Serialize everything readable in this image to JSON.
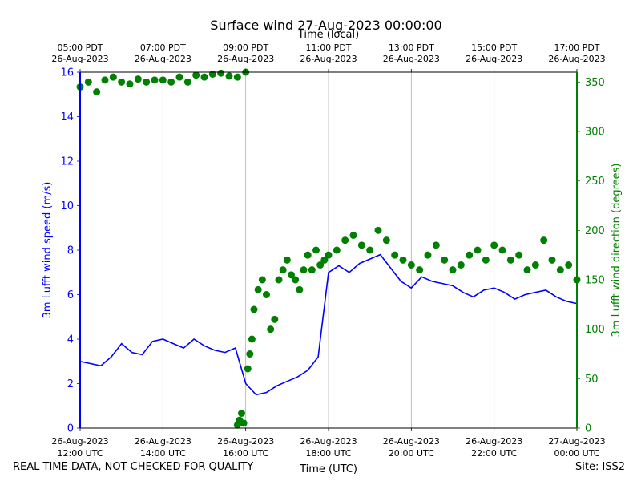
{
  "chart_data": {
    "type": "line",
    "title": "Surface wind 27-Aug-2023 00:00:00",
    "top_axis_label": "Time (local)",
    "xlabel": "Time (UTC)",
    "ylabel": "3m Lufft wind speed (m/s)",
    "ylabel_right": "3m Lufft wind direction (degrees)",
    "x_range_utc": [
      "2023-08-26 12:00",
      "2023-08-27 00:00"
    ],
    "ylim": [
      0,
      16
    ],
    "ylim_right": [
      0,
      360
    ],
    "grid": "vertical",
    "colors": {
      "speed": "#0000ff",
      "direction": "#008000"
    },
    "x_ticks_utc": [
      {
        "date": "26-Aug-2023",
        "time": "12:00 UTC"
      },
      {
        "date": "26-Aug-2023",
        "time": "14:00 UTC"
      },
      {
        "date": "26-Aug-2023",
        "time": "16:00 UTC"
      },
      {
        "date": "26-Aug-2023",
        "time": "18:00 UTC"
      },
      {
        "date": "26-Aug-2023",
        "time": "20:00 UTC"
      },
      {
        "date": "26-Aug-2023",
        "time": "22:00 UTC"
      },
      {
        "date": "27-Aug-2023",
        "time": "00:00 UTC"
      }
    ],
    "x_ticks_local": [
      {
        "time": "05:00 PDT",
        "date": "26-Aug-2023"
      },
      {
        "time": "07:00 PDT",
        "date": "26-Aug-2023"
      },
      {
        "time": "09:00 PDT",
        "date": "26-Aug-2023"
      },
      {
        "time": "11:00 PDT",
        "date": "26-Aug-2023"
      },
      {
        "time": "13:00 PDT",
        "date": "26-Aug-2023"
      },
      {
        "time": "15:00 PDT",
        "date": "26-Aug-2023"
      },
      {
        "time": "17:00 PDT",
        "date": "26-Aug-2023"
      }
    ],
    "y_ticks": [
      "0",
      "2",
      "4",
      "6",
      "8",
      "10",
      "12",
      "14",
      "16"
    ],
    "y_ticks_right": [
      "0",
      "50",
      "100",
      "150",
      "200",
      "250",
      "300",
      "350"
    ],
    "series": [
      {
        "axis": "left",
        "style": "line",
        "x_hours_utc": [
          12.0,
          12.25,
          12.5,
          12.75,
          13.0,
          13.25,
          13.5,
          13.75,
          14.0,
          14.25,
          14.5,
          14.75,
          15.0,
          15.25,
          15.5,
          15.75,
          16.0,
          16.25,
          16.5,
          16.75,
          17.0,
          17.25,
          17.5,
          17.75,
          18.0,
          18.25,
          18.5,
          18.75,
          19.0,
          19.25,
          19.5,
          19.75,
          20.0,
          20.25,
          20.5,
          20.75,
          21.0,
          21.25,
          21.5,
          21.75,
          22.0,
          22.25,
          22.5,
          22.75,
          23.0,
          23.25,
          23.5,
          23.75,
          24.0
        ],
        "values": [
          3.0,
          2.9,
          2.8,
          3.2,
          3.8,
          3.4,
          3.3,
          3.9,
          4.0,
          3.8,
          3.6,
          4.0,
          3.7,
          3.5,
          3.4,
          3.6,
          2.0,
          1.5,
          1.6,
          1.9,
          2.1,
          2.3,
          2.6,
          3.2,
          7.0,
          7.3,
          7.0,
          7.4,
          7.6,
          7.8,
          7.2,
          6.6,
          6.3,
          6.8,
          6.6,
          6.5,
          6.4,
          6.1,
          5.9,
          6.2,
          6.3,
          6.1,
          5.8,
          6.0,
          6.1,
          6.2,
          5.9,
          5.7,
          5.6
        ]
      },
      {
        "axis": "right",
        "style": "markers",
        "x_hours_utc": [
          12.0,
          12.2,
          12.4,
          12.6,
          12.8,
          13.0,
          13.2,
          13.4,
          13.6,
          13.8,
          14.0,
          14.2,
          14.4,
          14.6,
          14.8,
          15.0,
          15.2,
          15.4,
          15.6,
          15.8,
          16.0,
          15.8,
          15.85,
          15.9,
          15.95,
          16.05,
          16.1,
          16.15,
          16.2,
          16.3,
          16.4,
          16.5,
          16.6,
          16.7,
          16.8,
          16.9,
          17.0,
          17.1,
          17.2,
          17.3,
          17.4,
          17.5,
          17.6,
          17.7,
          17.8,
          17.9,
          18.0,
          18.2,
          18.4,
          18.6,
          18.8,
          19.0,
          19.2,
          19.4,
          19.6,
          19.8,
          20.0,
          20.2,
          20.4,
          20.6,
          20.8,
          21.0,
          21.2,
          21.4,
          21.6,
          21.8,
          22.0,
          22.2,
          22.4,
          22.6,
          22.8,
          23.0,
          23.2,
          23.4,
          23.6,
          23.8,
          24.0
        ],
        "values": [
          345,
          350,
          340,
          352,
          355,
          350,
          348,
          353,
          350,
          352,
          352,
          350,
          355,
          350,
          357,
          355,
          358,
          359,
          356,
          355,
          360,
          3,
          8,
          15,
          5,
          60,
          75,
          90,
          120,
          140,
          150,
          135,
          100,
          110,
          150,
          160,
          170,
          155,
          150,
          140,
          160,
          175,
          160,
          180,
          165,
          170,
          175,
          180,
          190,
          195,
          185,
          180,
          200,
          190,
          175,
          170,
          165,
          160,
          175,
          185,
          170,
          160,
          165,
          175,
          180,
          170,
          185,
          180,
          170,
          175,
          160,
          165,
          190,
          170,
          160,
          165,
          150
        ]
      }
    ]
  },
  "footer": {
    "disclaimer": "REAL TIME DATA, NOT CHECKED FOR QUALITY",
    "site": "Site: ISS2"
  }
}
